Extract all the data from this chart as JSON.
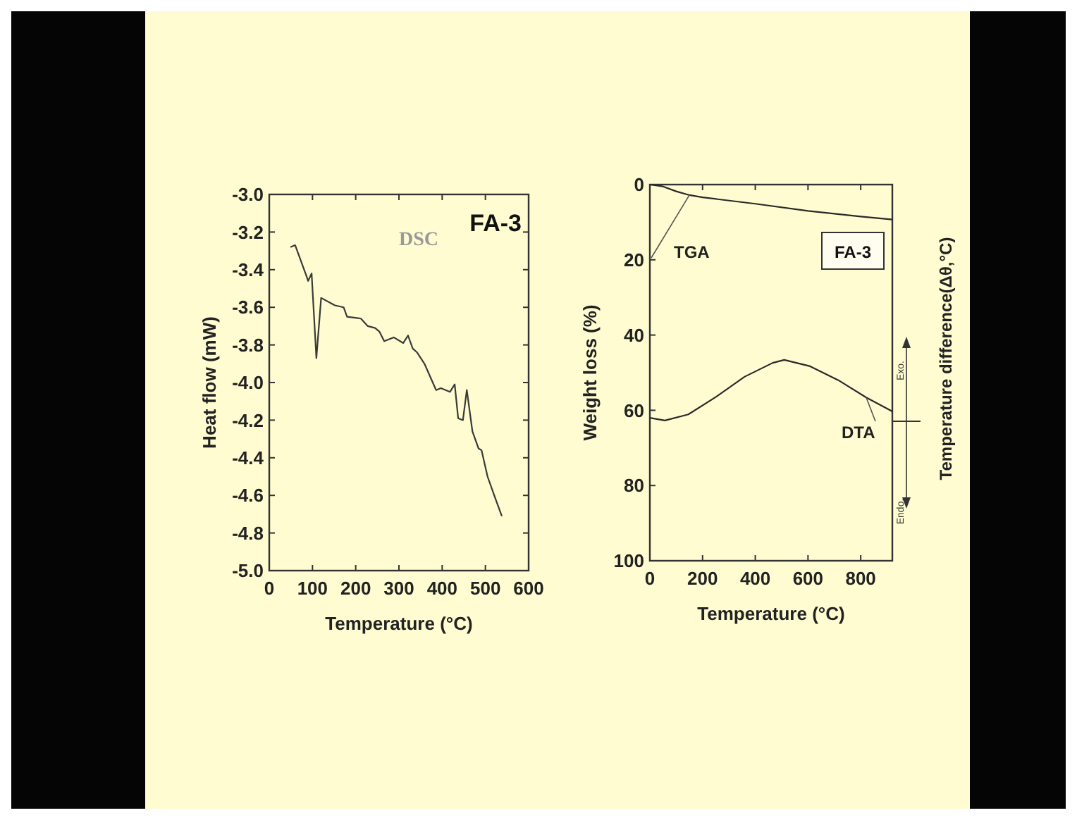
{
  "chart_data": [
    {
      "type": "line",
      "xlabel": "Temperature (°C)",
      "ylabel": "Heat flow (mW)",
      "xlim": [
        0,
        600
      ],
      "ylim": [
        -5,
        -3
      ],
      "xticks": [
        0,
        100,
        200,
        300,
        400,
        500,
        600
      ],
      "yticks": [
        {
          "value": -5,
          "label": "-5.0"
        },
        -4.8,
        -4.6,
        -4.4,
        -4.2,
        {
          "value": -4,
          "label": "-4.0"
        },
        -3.8,
        -3.6,
        -3.4,
        -3.2,
        {
          "value": -3,
          "label": "-3.0"
        }
      ],
      "annotations": [
        "FA-3"
      ],
      "series": [
        {
          "name": "DSC",
          "color": "#3a3a3a",
          "x": [
            49,
            60,
            87,
            90,
            98,
            109,
            120,
            152,
            172,
            180,
            212,
            228,
            245,
            255,
            266,
            288,
            310,
            321,
            332,
            342,
            359,
            386,
            397,
            418,
            429,
            437,
            448,
            457,
            470,
            484,
            491,
            505,
            522,
            538
          ],
          "values": [
            -3.28,
            -3.27,
            -3.44,
            -3.46,
            -3.42,
            -3.87,
            -3.55,
            -3.59,
            -3.6,
            -3.65,
            -3.66,
            -3.7,
            -3.71,
            -3.73,
            -3.78,
            -3.76,
            -3.79,
            -3.75,
            -3.82,
            -3.84,
            -3.9,
            -4.04,
            -4.03,
            -4.05,
            -4.01,
            -4.19,
            -4.2,
            -4.04,
            -4.26,
            -4.35,
            -4.36,
            -4.5,
            -4.61,
            -4.71
          ]
        }
      ]
    },
    {
      "type": "line",
      "xlabel": "Temperature (°C)",
      "ylabel": "Weight loss (%)",
      "y2label": "Temperature difference(Δθ,°C)",
      "xlim": [
        0,
        920
      ],
      "ylim": [
        100,
        0
      ],
      "xticks": [
        0,
        200,
        400,
        600,
        800
      ],
      "yticks": [
        0,
        20,
        40,
        60,
        80,
        100
      ],
      "annotations": [
        "FA-3",
        "Exo.",
        "Endo."
      ],
      "series": [
        {
          "name": "TGA",
          "color": "#2a2a2a",
          "x": [
            0,
            50,
            100,
            150,
            200,
            400,
            600,
            800,
            920
          ],
          "values": [
            0,
            0.5,
            1.8,
            2.8,
            3.4,
            5.1,
            7,
            8.5,
            9.3
          ]
        },
        {
          "name": "DTA",
          "color": "#2a2a2a",
          "x": [
            0,
            57,
            146,
            252,
            359,
            466,
            510,
            608,
            715,
            821,
            920
          ],
          "values": [
            62,
            62.7,
            61.1,
            56.4,
            51.1,
            47.4,
            46.6,
            48.3,
            52,
            56.6,
            60.3
          ]
        }
      ]
    }
  ]
}
